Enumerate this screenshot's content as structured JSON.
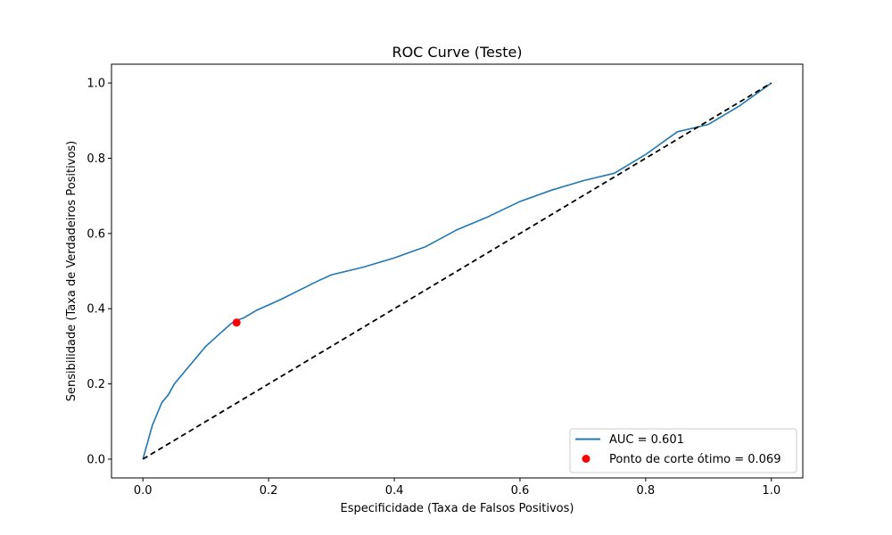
{
  "chart_data": {
    "type": "line",
    "title": "ROC Curve (Teste)",
    "xlabel": "Especificidade (Taxa de Falsos Positivos)",
    "ylabel": "Sensibilidade (Taxa de Verdadeiros Positivos)",
    "xlim": [
      -0.05,
      1.05
    ],
    "ylim": [
      -0.05,
      1.05
    ],
    "xticks": [
      0.0,
      0.2,
      0.4,
      0.6,
      0.8,
      1.0
    ],
    "yticks": [
      0.0,
      0.2,
      0.4,
      0.6,
      0.8,
      1.0
    ],
    "xtick_labels": [
      "0.0",
      "0.2",
      "0.4",
      "0.6",
      "0.8",
      "1.0"
    ],
    "ytick_labels": [
      "0.0",
      "0.2",
      "0.4",
      "0.6",
      "0.8",
      "1.0"
    ],
    "grid": false,
    "legend_position": "lower right",
    "series": [
      {
        "name": "AUC = 0.601",
        "kind": "line",
        "color": "#1f77b4",
        "x": [
          0.0,
          0.005,
          0.01,
          0.015,
          0.02,
          0.03,
          0.04,
          0.05,
          0.06,
          0.07,
          0.08,
          0.09,
          0.1,
          0.11,
          0.12,
          0.13,
          0.14,
          0.15,
          0.16,
          0.18,
          0.2,
          0.22,
          0.25,
          0.28,
          0.3,
          0.35,
          0.4,
          0.45,
          0.5,
          0.55,
          0.6,
          0.65,
          0.7,
          0.75,
          0.8,
          0.85,
          0.9,
          0.95,
          1.0
        ],
        "y": [
          0.0,
          0.03,
          0.06,
          0.09,
          0.11,
          0.15,
          0.17,
          0.2,
          0.22,
          0.24,
          0.26,
          0.28,
          0.3,
          0.315,
          0.33,
          0.345,
          0.36,
          0.37,
          0.375,
          0.395,
          0.41,
          0.425,
          0.45,
          0.475,
          0.49,
          0.51,
          0.535,
          0.565,
          0.61,
          0.645,
          0.685,
          0.715,
          0.74,
          0.76,
          0.81,
          0.87,
          0.89,
          0.94,
          1.0
        ]
      },
      {
        "name": "",
        "kind": "line",
        "color": "#000000",
        "dashed": true,
        "x": [
          0.0,
          1.0
        ],
        "y": [
          0.0,
          1.0
        ]
      },
      {
        "name": "Ponto de corte ótimo = 0.069",
        "kind": "scatter",
        "color": "#ff0000",
        "x": [
          0.149
        ],
        "y": [
          0.363
        ]
      }
    ]
  }
}
